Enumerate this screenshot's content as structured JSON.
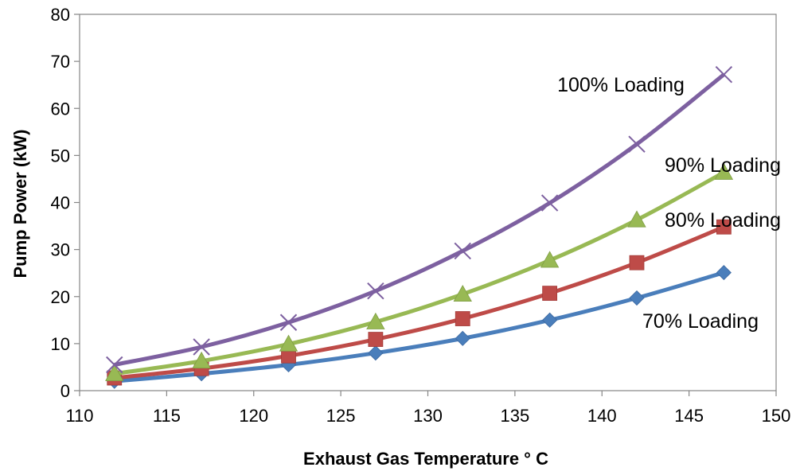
{
  "chart_data": {
    "type": "line",
    "title": "",
    "xlabel": "Exhaust Gas Temperature ° C",
    "ylabel": "Pump Power (kW)",
    "xlim": [
      110,
      150
    ],
    "ylim": [
      0,
      80
    ],
    "xticks": [
      "110",
      "115",
      "120",
      "125",
      "130",
      "135",
      "140",
      "145",
      "150"
    ],
    "yticks": [
      "0",
      "10",
      "20",
      "30",
      "40",
      "50",
      "60",
      "70",
      "80"
    ],
    "grid": false,
    "x": [
      112,
      117,
      122,
      127,
      132,
      137,
      142,
      147
    ],
    "series": [
      {
        "name": "70% Loading",
        "label": "70% Loading",
        "color": "#4a7ebb",
        "marker": "diamond",
        "values": [
          2.0,
          3.6,
          5.5,
          8.0,
          11.1,
          15.0,
          19.7,
          25.1
        ]
      },
      {
        "name": "80% Loading",
        "label": "80% Loading",
        "color": "#be4b48",
        "marker": "square",
        "values": [
          2.7,
          4.7,
          7.4,
          10.9,
          15.3,
          20.7,
          27.2,
          34.8
        ]
      },
      {
        "name": "90% Loading",
        "label": "90% Loading",
        "color": "#98b954",
        "marker": "triangle",
        "values": [
          3.6,
          6.3,
          9.9,
          14.6,
          20.5,
          27.7,
          36.3,
          46.4
        ]
      },
      {
        "name": "100% Loading",
        "label": "100% Loading",
        "color": "#7d60a0",
        "marker": "x",
        "values": [
          5.5,
          9.3,
          14.5,
          21.2,
          29.7,
          39.9,
          52.4,
          67.2
        ]
      }
    ]
  }
}
